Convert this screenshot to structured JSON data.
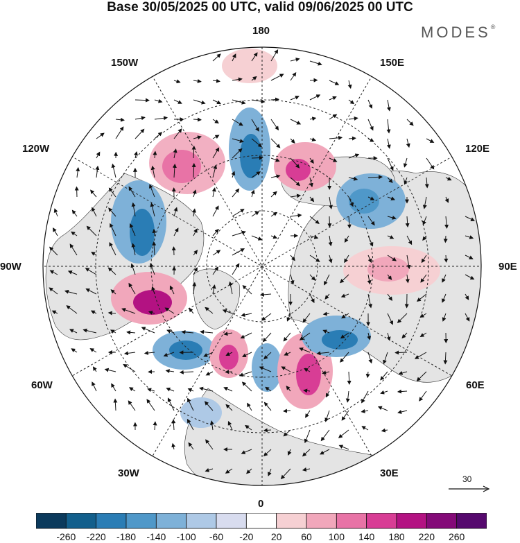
{
  "title": "Base 30/05/2025 00 UTC, valid 09/06/2025 00 UTC",
  "brand": {
    "text": "MODES",
    "mark": "®"
  },
  "longitude_labels": [
    "180",
    "150E",
    "120E",
    "90E",
    "60E",
    "30E",
    "0",
    "30W",
    "60W",
    "90W",
    "120W",
    "150W"
  ],
  "reference_vector": {
    "label": "30"
  },
  "colorbar": {
    "tick_labels": [
      "-260",
      "-220",
      "-180",
      "-140",
      "-100",
      "-60",
      "-20",
      "20",
      "60",
      "100",
      "140",
      "180",
      "220",
      "260"
    ],
    "colors": [
      "#0b3a5c",
      "#125f8c",
      "#2a7db5",
      "#4f98c9",
      "#7eb1d8",
      "#aec9e6",
      "#d8dcef",
      "#ffffff",
      "#f6d0d3",
      "#f1a7bb",
      "#e873a6",
      "#d83d95",
      "#b31282",
      "#840a78",
      "#56096e"
    ]
  },
  "colors": {
    "land": "#e4e4e4",
    "ocean": "#ffffff",
    "graticule": "#222222",
    "arrows": "#111111"
  }
}
